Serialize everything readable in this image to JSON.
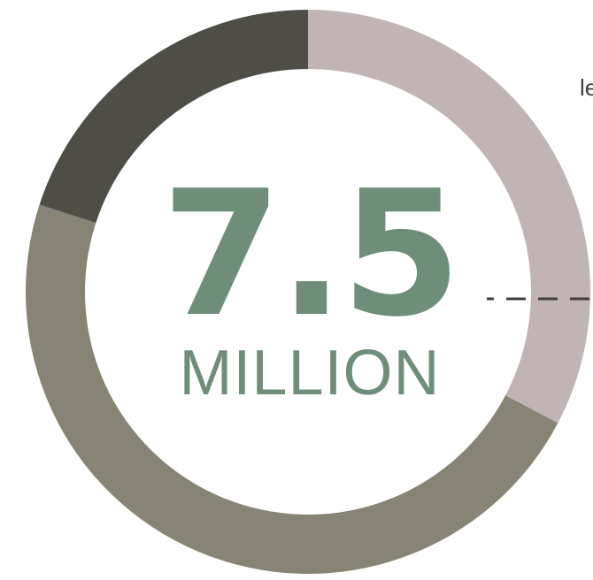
{
  "chart_data": {
    "type": "pie",
    "title": "",
    "center_value": "7.5",
    "center_unit": "MILLION",
    "corner_label": "le",
    "segments": [
      {
        "share": 0.327,
        "color": "#c0b4b4"
      },
      {
        "share": 0.473,
        "color": "#878375"
      },
      {
        "share": 0.2,
        "color": "#4e4d46"
      }
    ],
    "center_color": "#6f8e7a",
    "leader_line_color": "#3e3e3e"
  }
}
